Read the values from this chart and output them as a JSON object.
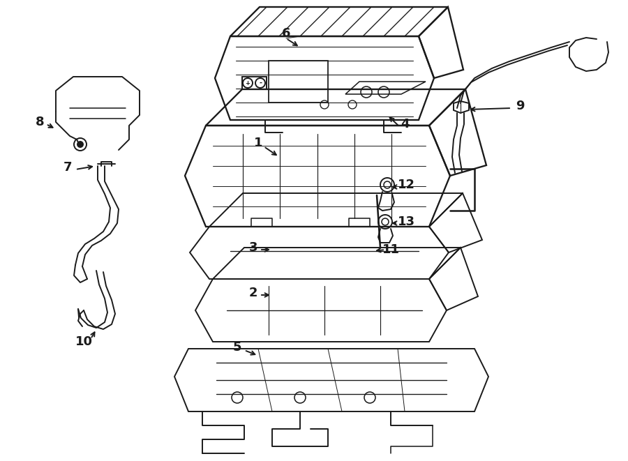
{
  "figsize": [
    9.0,
    6.61
  ],
  "dpi": 100,
  "background_color": "#ffffff",
  "line_color": "#1a1a1a",
  "lw": 1.4,
  "xlim": [
    0,
    900
  ],
  "ylim": [
    0,
    661
  ]
}
